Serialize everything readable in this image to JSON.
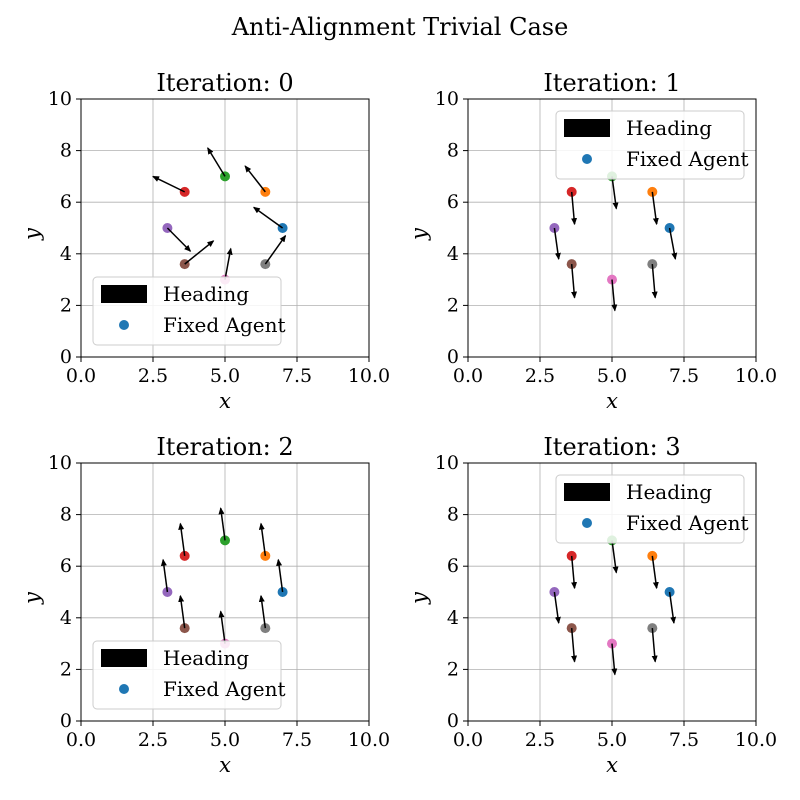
{
  "figure": {
    "title": "Anti-Alignment Trivial Case"
  },
  "colors": {
    "agents": [
      "#1f77b4",
      "#ff7f0e",
      "#2ca02c",
      "#d62728",
      "#9467bd",
      "#8c564b",
      "#e377c2",
      "#7f7f7f"
    ],
    "grid": "#b0b0b0",
    "arrow": "#000000",
    "legend_edge": "#cccccc"
  },
  "chart_data": [
    {
      "type": "quiver-scatter",
      "title": "Iteration: 0",
      "xlabel": "x",
      "ylabel": "y",
      "xlim": [
        0,
        10
      ],
      "ylim": [
        0,
        10
      ],
      "xticks": [
        "0.0",
        "2.5",
        "5.0",
        "7.5",
        "10.0"
      ],
      "yticks": [
        "0",
        "2",
        "4",
        "6",
        "8",
        "10"
      ],
      "grid": true,
      "legend": {
        "placement": "lower-left",
        "entries": [
          "Heading",
          "Fixed Agent"
        ]
      },
      "agents": [
        {
          "x": 7.0,
          "y": 5.0,
          "dx": -1.0,
          "dy": 0.8
        },
        {
          "x": 6.4,
          "y": 6.4,
          "dx": -0.7,
          "dy": 1.0
        },
        {
          "x": 5.0,
          "y": 7.0,
          "dx": -0.6,
          "dy": 1.1
        },
        {
          "x": 3.6,
          "y": 6.4,
          "dx": -1.1,
          "dy": 0.6
        },
        {
          "x": 3.0,
          "y": 5.0,
          "dx": 0.8,
          "dy": -0.9
        },
        {
          "x": 3.6,
          "y": 3.6,
          "dx": 1.0,
          "dy": 0.9
        },
        {
          "x": 5.0,
          "y": 3.0,
          "dx": 0.2,
          "dy": 1.2
        },
        {
          "x": 6.4,
          "y": 3.6,
          "dx": 0.7,
          "dy": 1.1
        }
      ]
    },
    {
      "type": "quiver-scatter",
      "title": "Iteration: 1",
      "xlabel": "x",
      "ylabel": "y",
      "xlim": [
        0,
        10
      ],
      "ylim": [
        0,
        10
      ],
      "xticks": [
        "0.0",
        "2.5",
        "5.0",
        "7.5",
        "10.0"
      ],
      "yticks": [
        "0",
        "2",
        "4",
        "6",
        "8",
        "10"
      ],
      "grid": true,
      "legend": {
        "placement": "upper-right",
        "entries": [
          "Heading",
          "Fixed Agent"
        ]
      },
      "agents": [
        {
          "x": 7.0,
          "y": 5.0,
          "dx": 0.2,
          "dy": -1.2
        },
        {
          "x": 6.4,
          "y": 6.4,
          "dx": 0.15,
          "dy": -1.25
        },
        {
          "x": 5.0,
          "y": 7.0,
          "dx": 0.15,
          "dy": -1.25
        },
        {
          "x": 3.6,
          "y": 6.4,
          "dx": 0.1,
          "dy": -1.25
        },
        {
          "x": 3.0,
          "y": 5.0,
          "dx": 0.15,
          "dy": -1.2
        },
        {
          "x": 3.6,
          "y": 3.6,
          "dx": 0.1,
          "dy": -1.3
        },
        {
          "x": 5.0,
          "y": 3.0,
          "dx": 0.1,
          "dy": -1.2
        },
        {
          "x": 6.4,
          "y": 3.6,
          "dx": 0.1,
          "dy": -1.3
        }
      ]
    },
    {
      "type": "quiver-scatter",
      "title": "Iteration: 2",
      "xlabel": "x",
      "ylabel": "y",
      "xlim": [
        0,
        10
      ],
      "ylim": [
        0,
        10
      ],
      "xticks": [
        "0.0",
        "2.5",
        "5.0",
        "7.5",
        "10.0"
      ],
      "yticks": [
        "0",
        "2",
        "4",
        "6",
        "8",
        "10"
      ],
      "grid": true,
      "legend": {
        "placement": "lower-left",
        "entries": [
          "Heading",
          "Fixed Agent"
        ]
      },
      "agents": [
        {
          "x": 7.0,
          "y": 5.0,
          "dx": -0.15,
          "dy": 1.25
        },
        {
          "x": 6.4,
          "y": 6.4,
          "dx": -0.15,
          "dy": 1.25
        },
        {
          "x": 5.0,
          "y": 7.0,
          "dx": -0.15,
          "dy": 1.25
        },
        {
          "x": 3.6,
          "y": 6.4,
          "dx": -0.15,
          "dy": 1.25
        },
        {
          "x": 3.0,
          "y": 5.0,
          "dx": -0.15,
          "dy": 1.25
        },
        {
          "x": 3.6,
          "y": 3.6,
          "dx": -0.15,
          "dy": 1.25
        },
        {
          "x": 5.0,
          "y": 3.0,
          "dx": -0.15,
          "dy": 1.25
        },
        {
          "x": 6.4,
          "y": 3.6,
          "dx": -0.15,
          "dy": 1.25
        }
      ]
    },
    {
      "type": "quiver-scatter",
      "title": "Iteration: 3",
      "xlabel": "x",
      "ylabel": "y",
      "xlim": [
        0,
        10
      ],
      "ylim": [
        0,
        10
      ],
      "xticks": [
        "0.0",
        "2.5",
        "5.0",
        "7.5",
        "10.0"
      ],
      "yticks": [
        "0",
        "2",
        "4",
        "6",
        "8",
        "10"
      ],
      "grid": true,
      "legend": {
        "placement": "upper-right",
        "entries": [
          "Heading",
          "Fixed Agent"
        ]
      },
      "agents": [
        {
          "x": 7.0,
          "y": 5.0,
          "dx": 0.15,
          "dy": -1.2
        },
        {
          "x": 6.4,
          "y": 6.4,
          "dx": 0.15,
          "dy": -1.25
        },
        {
          "x": 5.0,
          "y": 7.0,
          "dx": 0.15,
          "dy": -1.25
        },
        {
          "x": 3.6,
          "y": 6.4,
          "dx": 0.1,
          "dy": -1.25
        },
        {
          "x": 3.0,
          "y": 5.0,
          "dx": 0.15,
          "dy": -1.2
        },
        {
          "x": 3.6,
          "y": 3.6,
          "dx": 0.1,
          "dy": -1.3
        },
        {
          "x": 5.0,
          "y": 3.0,
          "dx": 0.1,
          "dy": -1.2
        },
        {
          "x": 6.4,
          "y": 3.6,
          "dx": 0.1,
          "dy": -1.3
        }
      ]
    }
  ]
}
